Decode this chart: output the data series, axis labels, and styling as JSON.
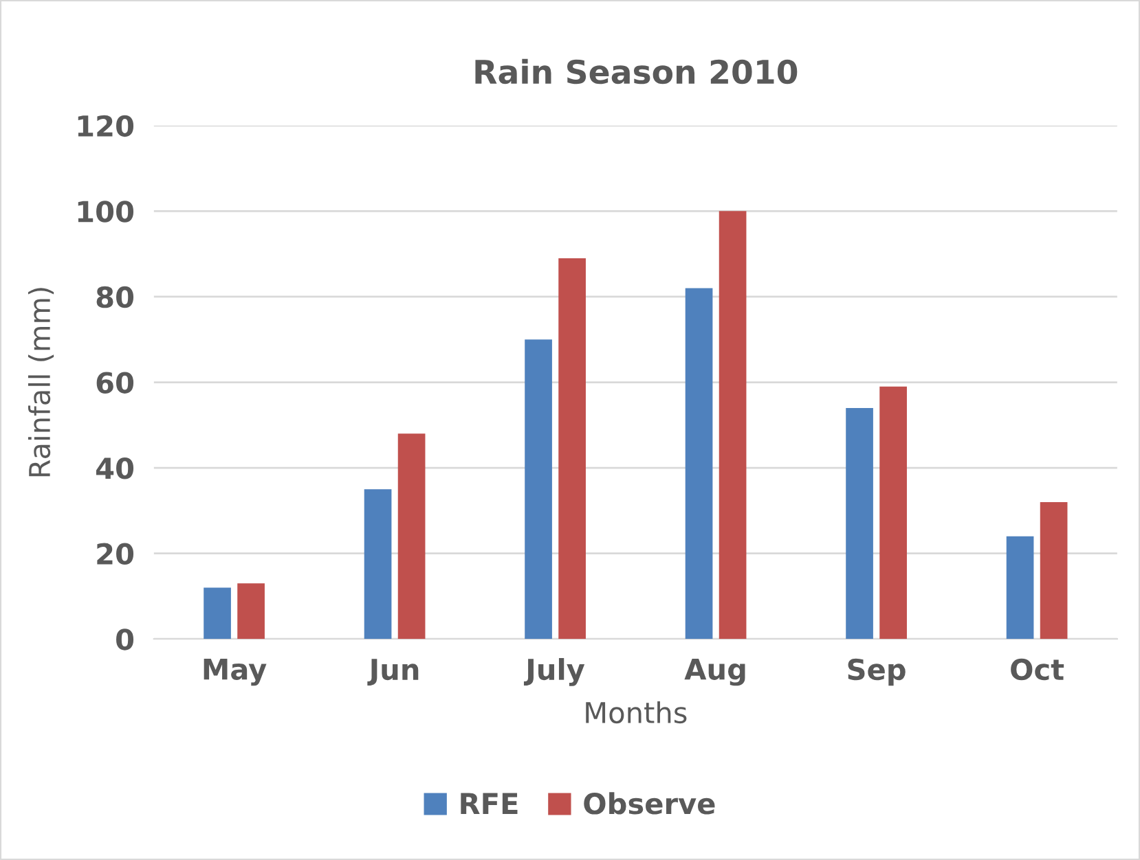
{
  "chart_data": {
    "type": "bar",
    "title": "Rain Season 2010",
    "xlabel": "Months",
    "ylabel": "Rainfall (mm)",
    "categories": [
      "May",
      "Jun",
      "July",
      "Aug",
      "Sep",
      "Oct"
    ],
    "series": [
      {
        "name": "RFE",
        "color": "#4f81bd",
        "values": [
          12,
          35,
          70,
          82,
          54,
          24
        ]
      },
      {
        "name": "Observe",
        "color": "#c0504d",
        "values": [
          13,
          48,
          89,
          100,
          59,
          32
        ]
      }
    ],
    "ylim": [
      0,
      120
    ],
    "yticks": [
      0,
      20,
      40,
      60,
      80,
      100,
      120
    ],
    "grid": "y",
    "legend": "bottom"
  }
}
